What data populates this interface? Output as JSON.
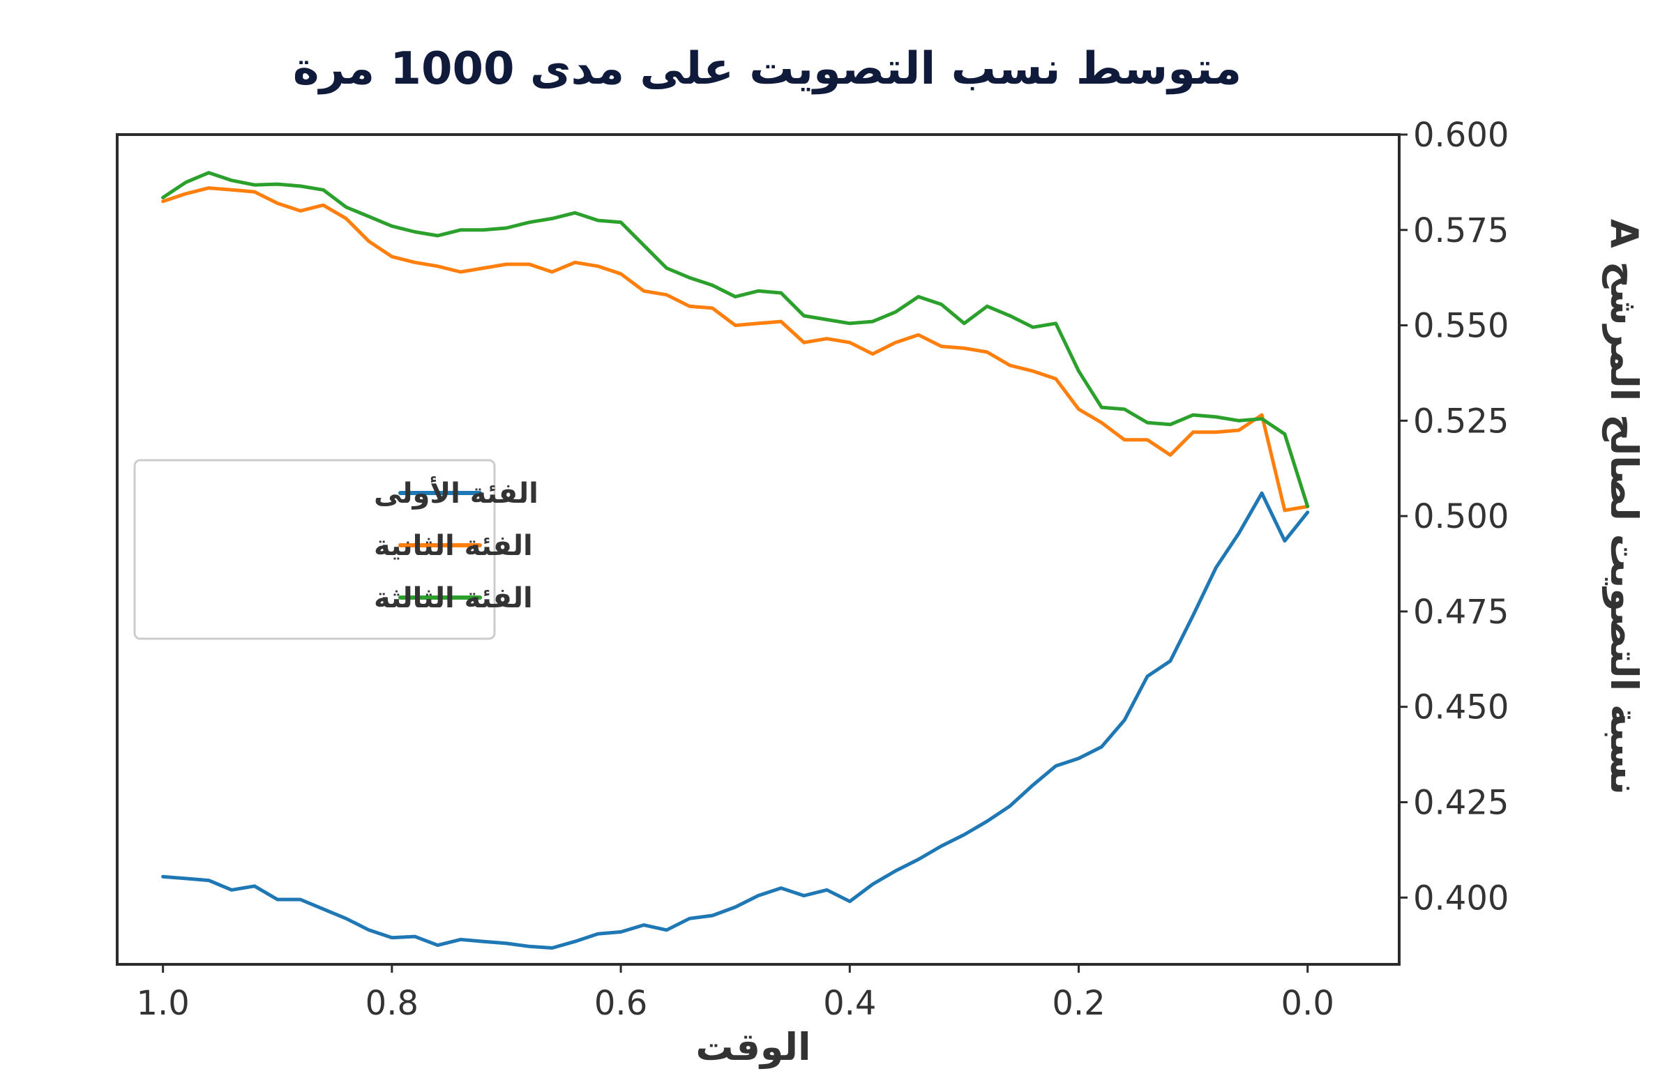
{
  "chart_data": {
    "type": "line",
    "title": "متوسط نسب التصويت على مدى 1000 مرة",
    "xlabel": "الوقت",
    "ylabel": "نسبة التصويت لصالح المرشح A",
    "xlim": [
      1.04,
      -0.08
    ],
    "ylim": [
      0.3825,
      0.6
    ],
    "x_ticks": [
      "1.0",
      "0.8",
      "0.6",
      "0.4",
      "0.2",
      "0.0"
    ],
    "x_tick_values": [
      1.0,
      0.8,
      0.6,
      0.4,
      0.2,
      0.0
    ],
    "y_ticks": [
      "0.600",
      "0.575",
      "0.550",
      "0.525",
      "0.500",
      "0.475",
      "0.450",
      "0.425",
      "0.400"
    ],
    "y_tick_values": [
      0.6,
      0.575,
      0.55,
      0.525,
      0.5,
      0.475,
      0.45,
      0.425,
      0.4
    ],
    "grid": false,
    "legend_position": "center-left",
    "x": [
      1.0,
      0.98,
      0.96,
      0.94,
      0.92,
      0.9,
      0.88,
      0.86,
      0.84,
      0.82,
      0.8,
      0.78,
      0.76,
      0.74,
      0.72,
      0.7,
      0.68,
      0.66,
      0.64,
      0.62,
      0.6,
      0.58,
      0.56,
      0.54,
      0.52,
      0.5,
      0.48,
      0.46,
      0.44,
      0.42,
      0.4,
      0.38,
      0.36,
      0.34,
      0.32,
      0.3,
      0.28,
      0.26,
      0.24,
      0.22,
      0.2,
      0.18,
      0.16,
      0.14,
      0.12,
      0.1,
      0.08,
      0.06,
      0.04,
      0.02,
      0.0
    ],
    "series": [
      {
        "name": "الفئة الأولى",
        "color": "#1f77b4",
        "values": [
          0.4055,
          0.405,
          0.4045,
          0.402,
          0.403,
          0.3995,
          0.3995,
          0.397,
          0.3945,
          0.3915,
          0.3895,
          0.3898,
          0.3875,
          0.389,
          0.3885,
          0.388,
          0.3872,
          0.3868,
          0.3885,
          0.3905,
          0.391,
          0.3928,
          0.3915,
          0.3945,
          0.3953,
          0.3975,
          0.4005,
          0.4025,
          0.4005,
          0.402,
          0.399,
          0.4035,
          0.407,
          0.41,
          0.4135,
          0.4165,
          0.42,
          0.424,
          0.4295,
          0.4345,
          0.4365,
          0.4395,
          0.4465,
          0.458,
          0.462,
          0.474,
          0.4865,
          0.4955,
          0.506,
          0.4935,
          0.501
        ]
      },
      {
        "name": "الفئة الثانية",
        "color": "#ff7f0e",
        "values": [
          0.5825,
          0.5845,
          0.586,
          0.5855,
          0.585,
          0.582,
          0.58,
          0.5815,
          0.578,
          0.572,
          0.568,
          0.5665,
          0.5655,
          0.564,
          0.565,
          0.566,
          0.566,
          0.564,
          0.5665,
          0.5655,
          0.5635,
          0.559,
          0.558,
          0.555,
          0.5545,
          0.55,
          0.5505,
          0.551,
          0.5455,
          0.5465,
          0.5455,
          0.5425,
          0.5455,
          0.5475,
          0.5445,
          0.544,
          0.543,
          0.5395,
          0.538,
          0.536,
          0.528,
          0.5245,
          0.52,
          0.52,
          0.516,
          0.522,
          0.522,
          0.5225,
          0.5265,
          0.5015,
          0.5025
        ]
      },
      {
        "name": "الفئة الثالثة",
        "color": "#2ca02c",
        "values": [
          0.5835,
          0.5875,
          0.59,
          0.588,
          0.5868,
          0.587,
          0.5865,
          0.5855,
          0.581,
          0.5785,
          0.576,
          0.5745,
          0.5735,
          0.575,
          0.575,
          0.5755,
          0.577,
          0.578,
          0.5795,
          0.5775,
          0.577,
          0.571,
          0.565,
          0.5625,
          0.5605,
          0.5575,
          0.559,
          0.5585,
          0.5525,
          0.5515,
          0.5505,
          0.551,
          0.5535,
          0.5575,
          0.5555,
          0.5505,
          0.555,
          0.5525,
          0.5495,
          0.5505,
          0.538,
          0.5285,
          0.528,
          0.5245,
          0.524,
          0.5265,
          0.526,
          0.525,
          0.5255,
          0.5215,
          0.5025
        ]
      }
    ]
  }
}
